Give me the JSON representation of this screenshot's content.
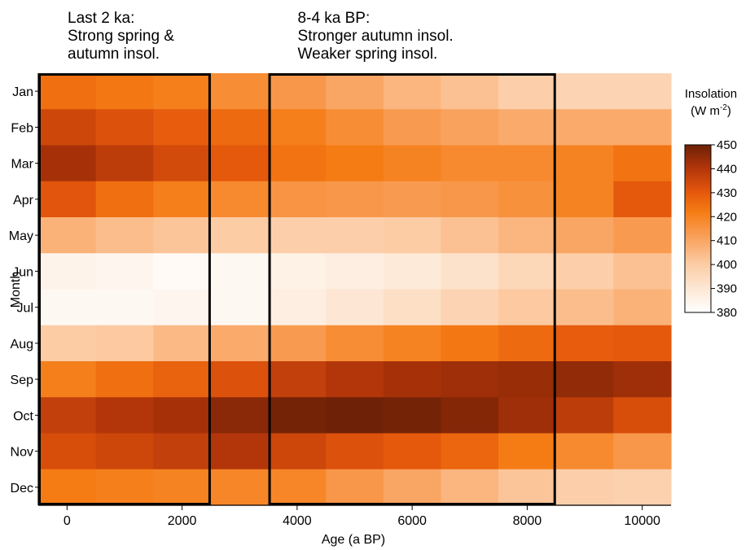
{
  "chart_data": {
    "type": "heatmap",
    "xlabel": "Age (a BP)",
    "ylabel": "Month",
    "x": [
      0,
      1000,
      2000,
      3000,
      4000,
      5000,
      6000,
      7000,
      8000,
      9000,
      10000
    ],
    "x_ticks": [
      0,
      2000,
      4000,
      6000,
      8000,
      10000
    ],
    "xlim": [
      -500,
      10500
    ],
    "months": [
      "Jan",
      "Feb",
      "Mar",
      "Apr",
      "May",
      "Jun",
      "Jul",
      "Aug",
      "Sep",
      "Oct",
      "Nov",
      "Dec"
    ],
    "values": [
      [
        425,
        423,
        421,
        417,
        414,
        410,
        406,
        403,
        399,
        397,
        397
      ],
      [
        435,
        432,
        429,
        426,
        421,
        417,
        413,
        411,
        409,
        409,
        409
      ],
      [
        442,
        438,
        434,
        430,
        424,
        422,
        420,
        418,
        418,
        420,
        424
      ],
      [
        431,
        425,
        421,
        418,
        415,
        414,
        413,
        414,
        416,
        420,
        430
      ],
      [
        407,
        404,
        402,
        400,
        399,
        399,
        400,
        403,
        406,
        410,
        413
      ],
      [
        385,
        384,
        382,
        383,
        386,
        387,
        389,
        392,
        396,
        399,
        403
      ],
      [
        383,
        383,
        384,
        383,
        387,
        390,
        393,
        397,
        401,
        404,
        407
      ],
      [
        400,
        401,
        405,
        409,
        413,
        417,
        420,
        423,
        426,
        429,
        430
      ],
      [
        421,
        425,
        428,
        432,
        437,
        440,
        442,
        443,
        444,
        445,
        443
      ],
      [
        437,
        440,
        442,
        446,
        449,
        450,
        449,
        447,
        443,
        438,
        433
      ],
      [
        433,
        435,
        437,
        440,
        435,
        432,
        430,
        427,
        422,
        418,
        414
      ],
      [
        422,
        421,
        420,
        419,
        419,
        414,
        410,
        406,
        402,
        399,
        398
      ]
    ],
    "colorbar": {
      "title_line1": "Insolation",
      "title_unit": "(W m",
      "title_sup": "-2",
      "title_close": ")",
      "min": 380,
      "max": 450,
      "ticks": [
        380,
        390,
        400,
        410,
        420,
        430,
        440,
        450
      ]
    },
    "highlight_boxes": [
      {
        "x_start": -500,
        "x_end": 2500,
        "lines": [
          "Last 2 ka:",
          "Strong spring &",
          "autumn insol."
        ]
      },
      {
        "x_start": 3500,
        "x_end": 8500,
        "lines": [
          "8-4 ka BP:",
          "Stronger autumn insol.",
          "Weaker spring insol."
        ]
      }
    ]
  }
}
